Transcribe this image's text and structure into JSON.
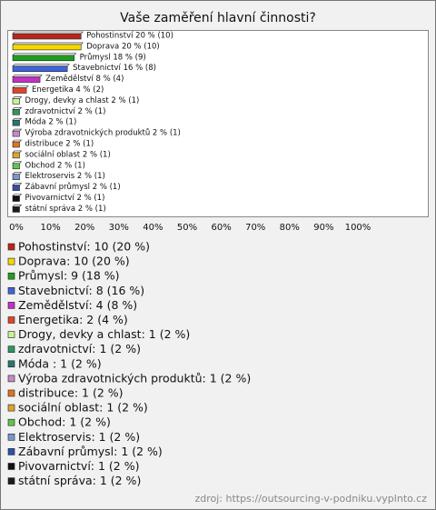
{
  "chart_data": {
    "type": "hbar",
    "title": "Vaše zaměření hlavní činnosti?",
    "values": [
      20,
      20,
      18,
      16,
      8,
      4,
      2,
      2,
      2,
      2,
      2,
      2,
      2,
      2,
      2,
      2,
      2
    ],
    "counts": [
      10,
      10,
      9,
      8,
      4,
      2,
      1,
      1,
      1,
      1,
      1,
      1,
      1,
      1,
      1,
      1,
      1
    ],
    "value_labels": [
      "Pohostinství 20 % (10)",
      "Doprava 20 % (10)",
      "Průmysl 18 % (9)",
      "Stavebnictví 16 % (8)",
      "Zemědělství 8 % (4)",
      "Energetika 4 % (2)",
      "Drogy, devky a chlast 2 % (1)",
      "zdravotnictví 2 % (1)",
      "Móda  2 % (1)",
      "Výroba zdravotnických produktů 2 % (1)",
      "distribuce 2 % (1)",
      "sociální oblast 2 % (1)",
      "Obchod 2 % (1)",
      "Elektroservis 2 % (1)",
      "Zábavní průmysl 2 % (1)",
      "Pivovarnictví 2 % (1)",
      "státní správa 2 % (1)"
    ],
    "legend_labels": [
      "Pohostinství: 10 (20 %)",
      "Doprava: 10 (20 %)",
      "Průmysl: 9 (18 %)",
      "Stavebnictví: 8 (16 %)",
      "Zemědělství: 4 (8 %)",
      "Energetika: 2 (4 %)",
      "Drogy, devky a chlast: 1 (2 %)",
      "zdravotnictví: 1 (2 %)",
      "Móda : 1 (2 %)",
      "Výroba zdravotnických produktů: 1 (2 %)",
      "distribuce: 1 (2 %)",
      "sociální oblast: 1 (2 %)",
      "Obchod: 1 (2 %)",
      "Elektroservis: 1 (2 %)",
      "Zábavní průmysl: 1 (2 %)",
      "Pivovarnictví: 1 (2 %)",
      "státní správa: 1 (2 %)"
    ],
    "colors": [
      "#b8261b",
      "#f5d800",
      "#1f9e1f",
      "#3f63d8",
      "#c62fc6",
      "#e0452a",
      "#c9f29a",
      "#2f9461",
      "#2a7474",
      "#c68ac6",
      "#e07222",
      "#dba42e",
      "#5fc64a",
      "#7a96cc",
      "#3050a6",
      "#111111",
      "#1c1c1c"
    ],
    "xlim": [
      0,
      100
    ],
    "xticks": [
      {
        "value": 0,
        "label": "0%"
      },
      {
        "value": 10,
        "label": "10%"
      },
      {
        "value": 20,
        "label": "20%"
      },
      {
        "value": 30,
        "label": "30%"
      },
      {
        "value": 40,
        "label": "40%"
      },
      {
        "value": 50,
        "label": "50%"
      },
      {
        "value": 60,
        "label": "60%"
      },
      {
        "value": 70,
        "label": "70%"
      },
      {
        "value": 80,
        "label": "80%"
      },
      {
        "value": 90,
        "label": "90%"
      },
      {
        "value": 100,
        "label": "100%"
      }
    ],
    "source": "zdroj: https://outsourcing-v-podniku.vyplnto.cz"
  }
}
